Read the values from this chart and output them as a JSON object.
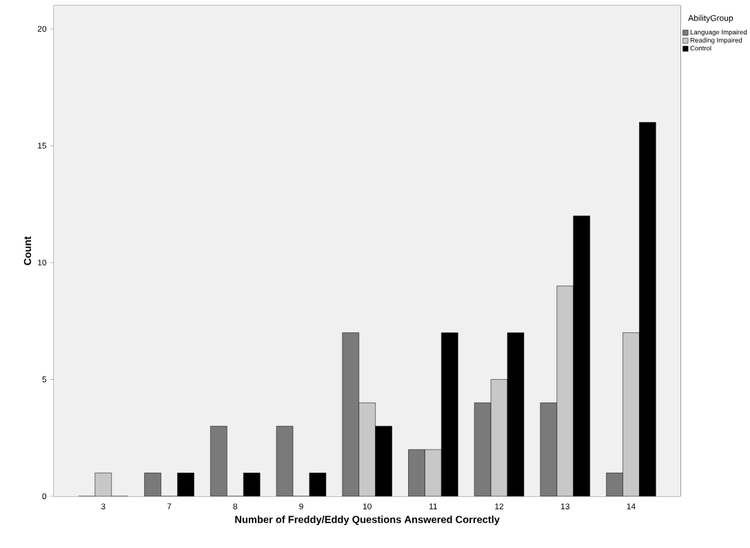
{
  "chart_data": {
    "type": "bar",
    "xlabel": "Number of Freddy/Eddy Questions Answered Correctly",
    "ylabel": "Count",
    "legend_title": "AbilityGroup",
    "legend": "top right",
    "categories": [
      "3",
      "7",
      "8",
      "9",
      "10",
      "11",
      "12",
      "13",
      "14"
    ],
    "series": [
      {
        "name": "Language Impaired",
        "color": "#7a7a7a",
        "values": [
          0,
          1,
          3,
          3,
          7,
          2,
          4,
          4,
          1
        ]
      },
      {
        "name": "Reading Impaired",
        "color": "#c8c8c8",
        "values": [
          1,
          0,
          0,
          0,
          4,
          2,
          5,
          9,
          7
        ]
      },
      {
        "name": "Control",
        "color": "#000000",
        "values": [
          0,
          1,
          1,
          1,
          3,
          7,
          7,
          12,
          16
        ]
      }
    ],
    "ylim": [
      0,
      21
    ],
    "yticks": [
      0,
      5,
      10,
      15,
      20
    ]
  }
}
